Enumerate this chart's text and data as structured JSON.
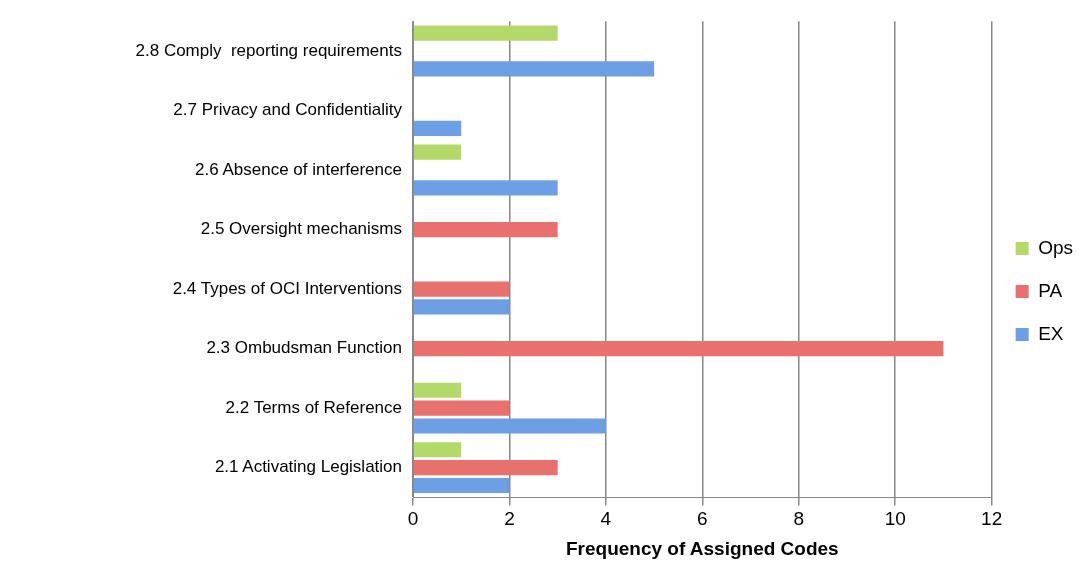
{
  "chart_data": {
    "type": "bar",
    "orientation": "horizontal",
    "xlabel": "Frequency of Assigned Codes",
    "categories": [
      "2.8 Comply  reporting requirements",
      "2.7 Privacy and Confidentiality",
      "2.6 Absence of interference",
      "2.5 Oversight mechanisms",
      "2.4 Types of OCI Interventions",
      "2.3 Ombudsman Function",
      "2.2 Terms of Reference",
      "2.1 Activating Legislation"
    ],
    "series": [
      {
        "name": "Ops",
        "color": "#b3d96b",
        "values": [
          3,
          null,
          1,
          null,
          null,
          null,
          1,
          1
        ]
      },
      {
        "name": "PA",
        "color": "#e8706d",
        "values": [
          null,
          null,
          null,
          3,
          2,
          11,
          2,
          3
        ]
      },
      {
        "name": "EX",
        "color": "#6c9fe4",
        "values": [
          5,
          1,
          3,
          null,
          2,
          null,
          4,
          2
        ]
      }
    ],
    "xlim": [
      0,
      12
    ],
    "xticks": [
      0,
      2,
      4,
      6,
      8,
      10,
      12
    ],
    "grid": "x",
    "legend": "right"
  }
}
